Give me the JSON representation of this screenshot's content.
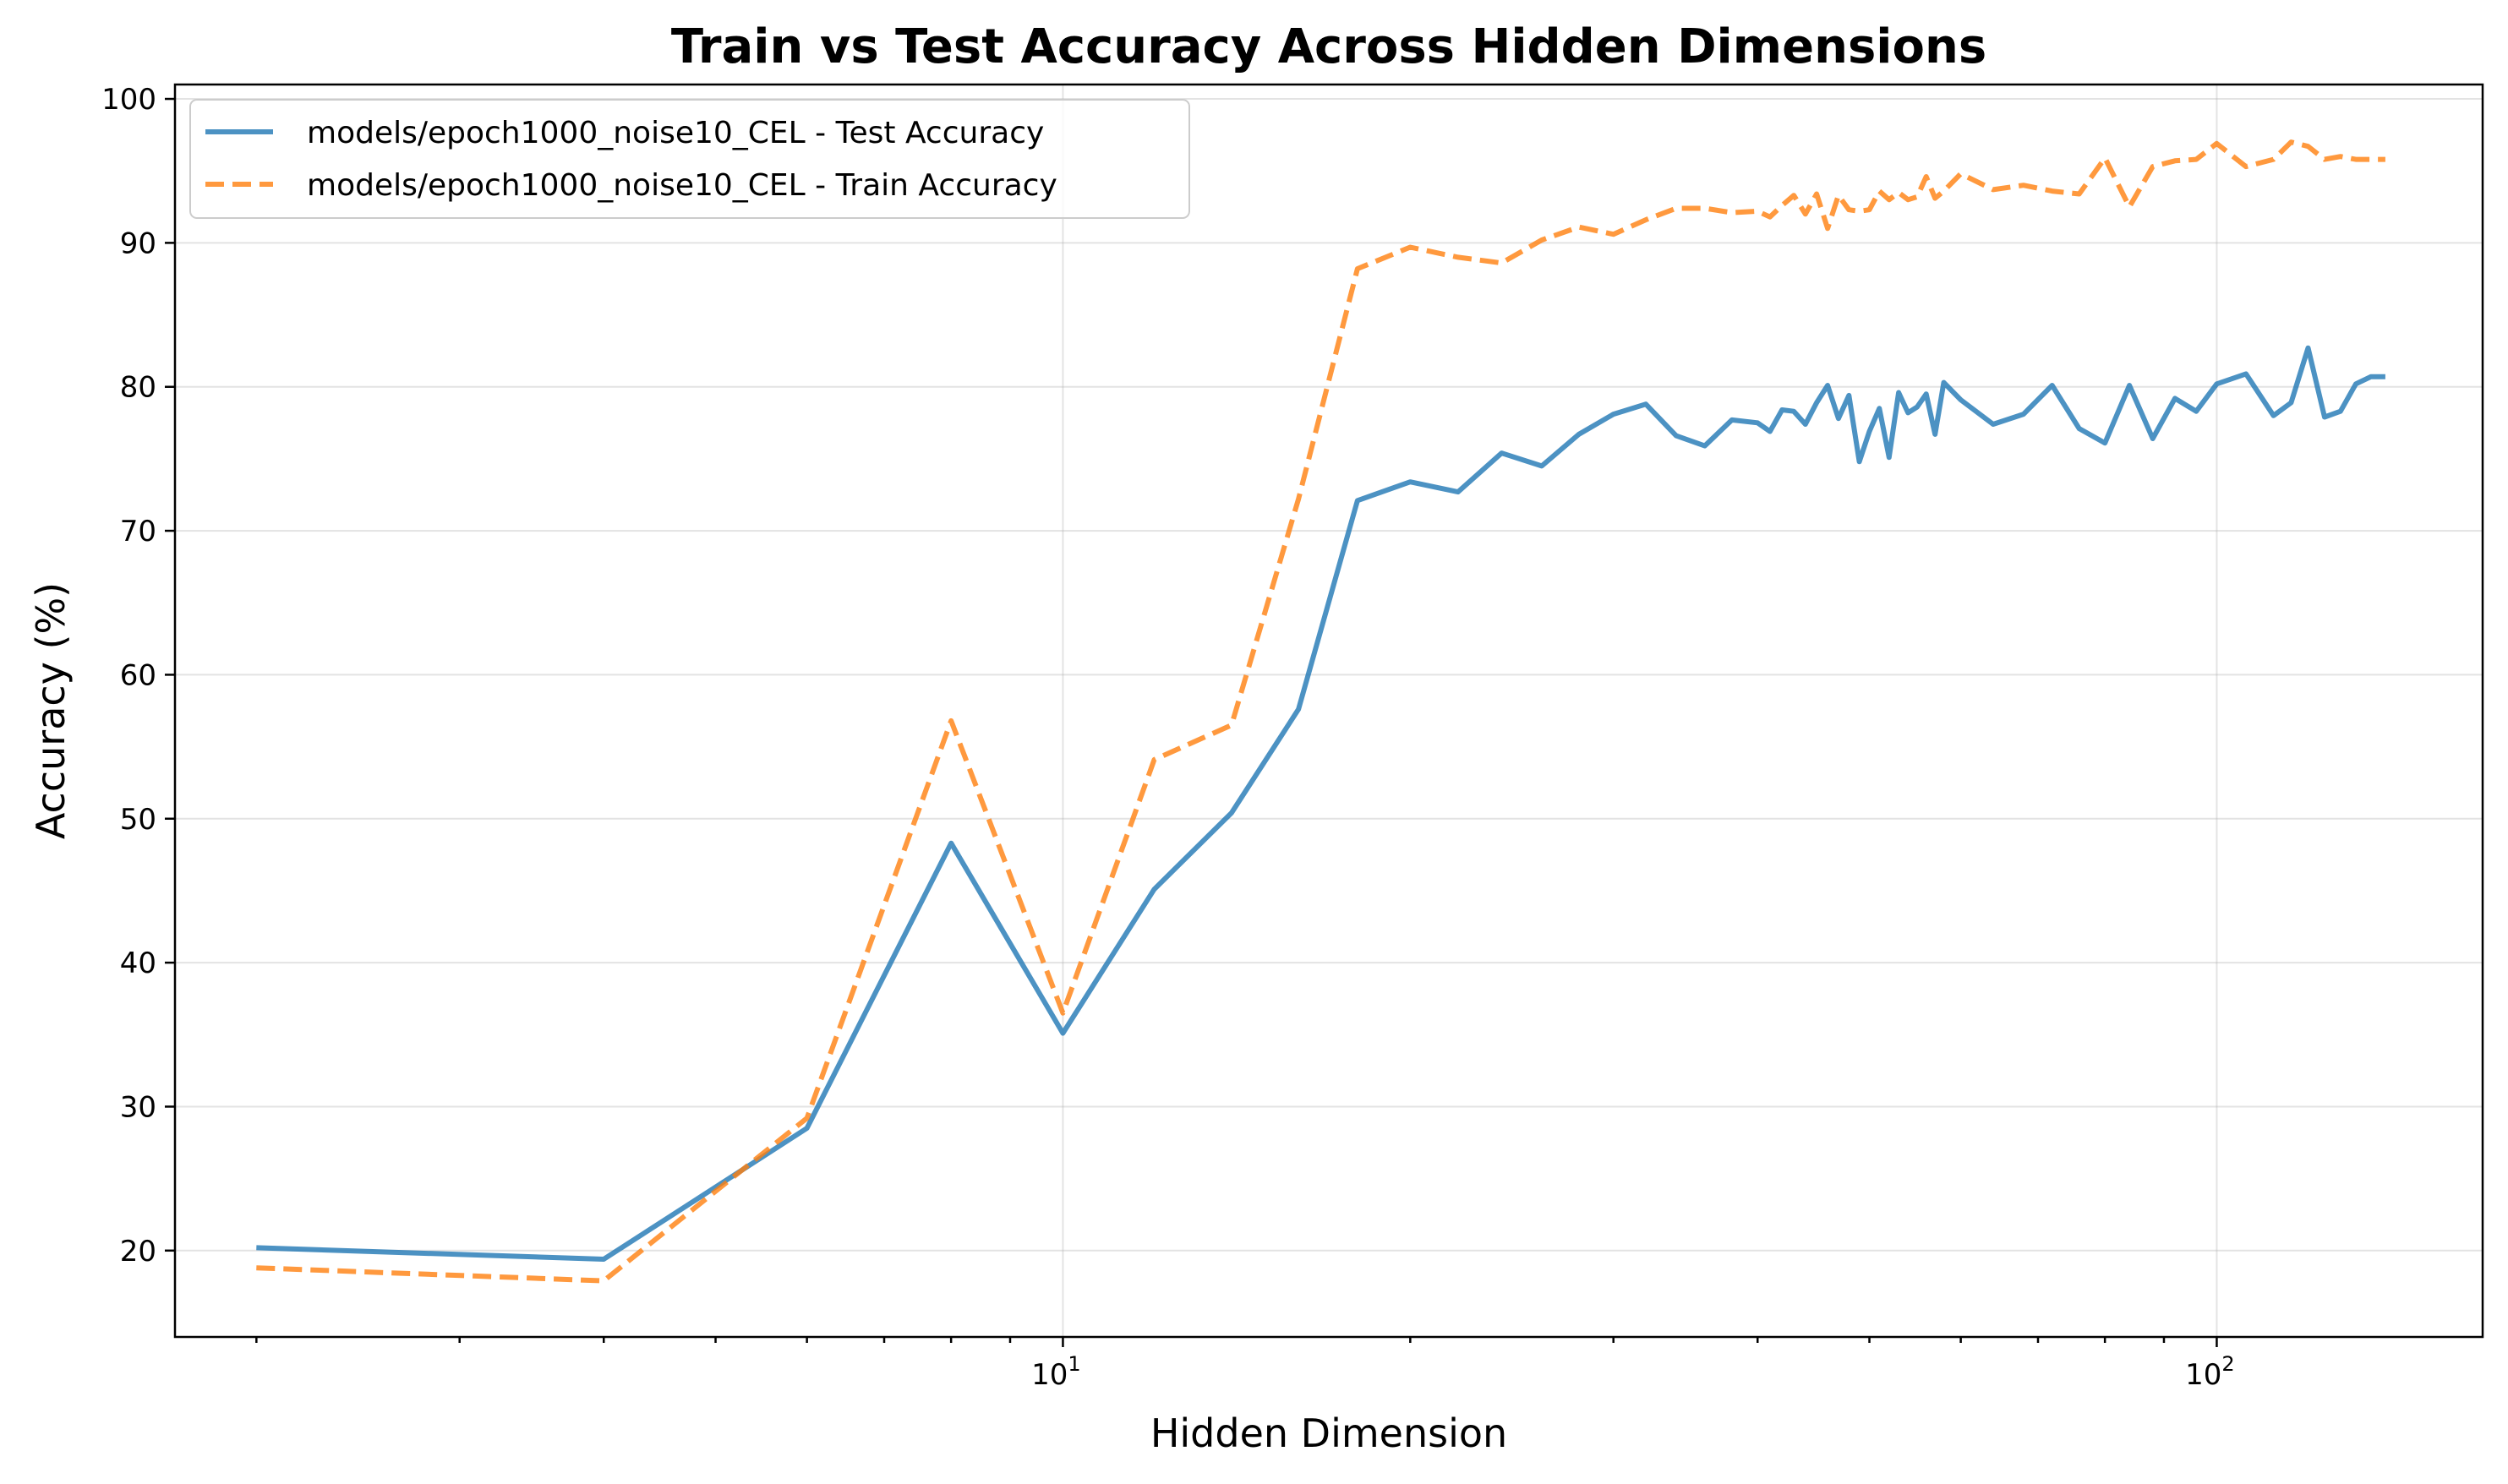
{
  "chart_data": {
    "type": "line",
    "title": "Train vs Test Accuracy Across Hidden Dimensions",
    "xlabel": "Hidden Dimension",
    "ylabel": "Accuracy (%)",
    "xscale": "log",
    "xlim": [
      1.7,
      170
    ],
    "ylim": [
      14,
      101
    ],
    "yticks": [
      20,
      30,
      40,
      50,
      60,
      70,
      80,
      90,
      100
    ],
    "xticks_major": [
      {
        "value": 10,
        "base": "10",
        "exp": "1"
      },
      {
        "value": 100,
        "base": "10",
        "exp": "2"
      }
    ],
    "xticks_minor": [
      2,
      3,
      4,
      5,
      6,
      7,
      8,
      9,
      20,
      30,
      40,
      50,
      60,
      70,
      80,
      90
    ],
    "grid": true,
    "legend_position": "top-left",
    "series": [
      {
        "name": "models/epoch1000_noise10_CEL - Test Accuracy",
        "color": "#1f77b4",
        "style": "solid",
        "x": [
          2,
          4,
          6,
          8,
          10,
          12,
          14,
          16,
          18,
          20,
          22,
          24,
          26,
          28,
          30,
          32,
          34,
          36,
          38,
          40,
          41,
          42,
          43,
          44,
          45,
          46,
          47,
          48,
          49,
          50,
          51,
          52,
          53,
          54,
          55,
          56,
          57,
          58,
          60,
          64,
          68,
          72,
          76,
          80,
          84,
          88,
          92,
          96,
          100,
          106,
          112,
          116,
          120,
          124,
          128,
          132,
          136,
          140
        ],
        "y": [
          20.2,
          19.4,
          28.5,
          48.3,
          35.1,
          45.1,
          50.4,
          57.6,
          72.1,
          73.4,
          72.7,
          75.4,
          74.5,
          76.7,
          78.1,
          78.8,
          76.6,
          75.9,
          77.7,
          77.5,
          76.9,
          78.4,
          78.3,
          77.4,
          78.9,
          80.1,
          77.8,
          79.4,
          74.8,
          76.9,
          78.5,
          75.1,
          79.6,
          78.2,
          78.6,
          79.5,
          76.7,
          80.3,
          79.1,
          77.4,
          78.1,
          80.1,
          77.1,
          76.1,
          80.1,
          76.4,
          79.2,
          78.3,
          80.2,
          80.9,
          78.0,
          78.9,
          82.7,
          77.9,
          78.3,
          80.2,
          80.7,
          80.7
        ]
      },
      {
        "name": "models/epoch1000_noise10_CEL - Train Accuracy",
        "color": "#ff7f0e",
        "style": "dashed",
        "x": [
          2,
          4,
          6,
          8,
          10,
          12,
          14,
          16,
          18,
          20,
          22,
          24,
          26,
          28,
          30,
          32,
          34,
          36,
          38,
          40,
          41,
          42,
          43,
          44,
          45,
          46,
          47,
          48,
          49,
          50,
          51,
          52,
          53,
          54,
          55,
          56,
          57,
          58,
          60,
          64,
          68,
          72,
          76,
          80,
          84,
          88,
          92,
          96,
          100,
          106,
          112,
          116,
          120,
          124,
          128,
          132,
          136,
          140
        ],
        "y": [
          18.8,
          17.9,
          29.2,
          56.8,
          36.5,
          54.1,
          56.5,
          72.2,
          88.2,
          89.7,
          89.0,
          88.6,
          90.2,
          91.1,
          90.6,
          91.6,
          92.4,
          92.4,
          92.1,
          92.2,
          91.8,
          92.6,
          93.3,
          92.0,
          93.4,
          91.0,
          93.3,
          92.3,
          92.2,
          92.3,
          93.6,
          93.0,
          93.5,
          93.0,
          93.2,
          94.6,
          93.1,
          93.6,
          94.8,
          93.7,
          94.0,
          93.6,
          93.4,
          95.9,
          92.5,
          95.3,
          95.7,
          95.8,
          96.9,
          95.3,
          95.8,
          97.0,
          96.7,
          95.8,
          96.0,
          95.8,
          95.8,
          95.8
        ]
      }
    ]
  }
}
